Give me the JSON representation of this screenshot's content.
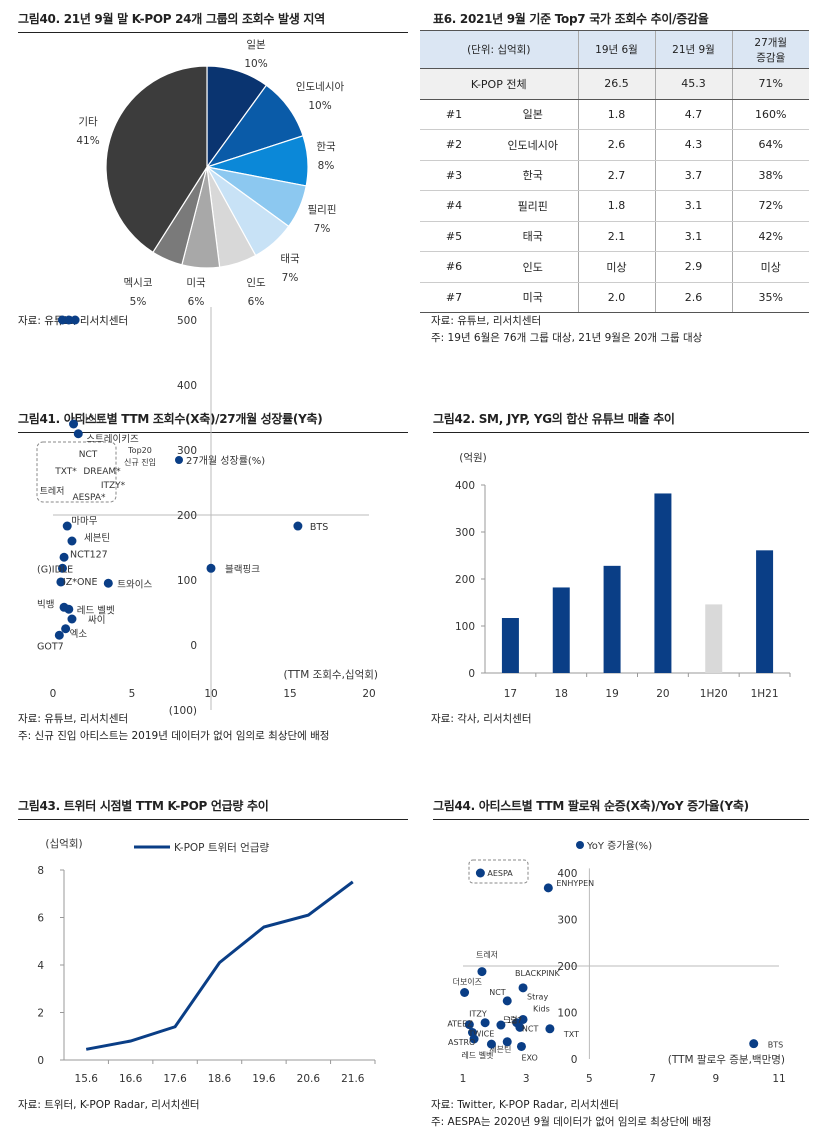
{
  "fig40": {
    "title": "그림40. 21년 9월 말 K-POP 24개 그룹의 조회수 발생 지역",
    "source": "자료: 유튜브, 리서치센터",
    "chart_data": {
      "type": "pie",
      "labels": [
        "일본",
        "인도네시아",
        "한국",
        "필리핀",
        "태국",
        "인도",
        "미국",
        "멕시코",
        "기타"
      ],
      "values": [
        10,
        10,
        8,
        7,
        7,
        6,
        6,
        5,
        41
      ],
      "value_labels": [
        "10%",
        "10%",
        "8%",
        "7%",
        "7%",
        "6%",
        "6%",
        "5%",
        "41%"
      ],
      "colors": [
        "#0a3470",
        "#0a5ba8",
        "#0b88d8",
        "#8cc8f0",
        "#c8e2f6",
        "#d8d8d8",
        "#a8a8a8",
        "#7a7a7a",
        "#3c3c3c"
      ]
    }
  },
  "table6": {
    "title": "표6. 2021년 9월 기준 Top7 국가 조회수 추이/증감율",
    "headers": [
      "(단위: 십억회)",
      "19년 6월",
      "21년 9월",
      "27개월",
      "증감율"
    ],
    "total": {
      "label": "K-POP 전체",
      "v1": "26.5",
      "v2": "45.3",
      "v3": "71%"
    },
    "rows": [
      {
        "rank": "#1",
        "country": "일본",
        "v1": "1.8",
        "v2": "4.7",
        "v3": "160%"
      },
      {
        "rank": "#2",
        "country": "인도네시아",
        "v1": "2.6",
        "v2": "4.3",
        "v3": "64%"
      },
      {
        "rank": "#3",
        "country": "한국",
        "v1": "2.7",
        "v2": "3.7",
        "v3": "38%"
      },
      {
        "rank": "#4",
        "country": "필리핀",
        "v1": "1.8",
        "v2": "3.1",
        "v3": "72%"
      },
      {
        "rank": "#5",
        "country": "태국",
        "v1": "2.1",
        "v2": "3.1",
        "v3": "42%"
      },
      {
        "rank": "#6",
        "country": "인도",
        "v1": "미상",
        "v2": "2.9",
        "v3": "미상"
      },
      {
        "rank": "#7",
        "country": "미국",
        "v1": "2.0",
        "v2": "2.6",
        "v3": "35%"
      }
    ],
    "source": "자료: 유튜브, 리서치센터",
    "note": "주: 19년 6월은 76개 그룹 대상, 21년 9월은 20개 그룹 대상"
  },
  "fig41": {
    "title": "그림41. 아티스트별 TTM 조회수(X축)/27개월 성장률(Y축)",
    "source": "자료: 유튜브, 리서치센터",
    "note": "주: 신규 진입 아티스트는 2019년 데이터가 없어 임의로 최상단에 배정",
    "chart_data": {
      "type": "scatter",
      "legend": "27개월 성장률(%)",
      "x_axis_label": "(TTM 조회수,십억회)",
      "box_label": [
        "Top20",
        "신규 진입"
      ],
      "xlim": [
        0,
        20
      ],
      "ylim": [
        -100,
        500
      ],
      "x_ticks": [
        "0",
        "5",
        "10",
        "15",
        "20"
      ],
      "y_ticks": [
        "(100)",
        "0",
        "100",
        "200",
        "300",
        "400",
        "500"
      ],
      "new_entries": [
        "NCT",
        "TXT*",
        "DREAM*",
        "트레저",
        "ITZY*",
        "AESPA*"
      ],
      "points": [
        {
          "name": "",
          "x": 0.6,
          "y": 500
        },
        {
          "name": "",
          "x": 1.0,
          "y": 500
        },
        {
          "name": "",
          "x": 1.4,
          "y": 500
        },
        {
          "name": "아이유",
          "x": 1.3,
          "y": 340
        },
        {
          "name": "스트레이키즈",
          "x": 1.6,
          "y": 325
        },
        {
          "name": "마마무",
          "x": 0.9,
          "y": 183
        },
        {
          "name": "세븐틴",
          "x": 1.2,
          "y": 160
        },
        {
          "name": "NCT127",
          "x": 0.7,
          "y": 135
        },
        {
          "name": "(G)IDLE",
          "x": 0.6,
          "y": 118
        },
        {
          "name": "IZ*ONE",
          "x": 0.5,
          "y": 97
        },
        {
          "name": "트와이스",
          "x": 3.5,
          "y": 95
        },
        {
          "name": "빅뱅",
          "x": 0.7,
          "y": 58
        },
        {
          "name": "레드 벨벳",
          "x": 1.0,
          "y": 55
        },
        {
          "name": "싸이",
          "x": 1.2,
          "y": 40
        },
        {
          "name": "엑소",
          "x": 0.8,
          "y": 25
        },
        {
          "name": "GOT7",
          "x": 0.4,
          "y": 15
        },
        {
          "name": "BTS",
          "x": 15.5,
          "y": 183
        },
        {
          "name": "블랙핑크",
          "x": 10.0,
          "y": 118
        }
      ]
    }
  },
  "fig42": {
    "title": "그림42. SM, JYP, YG의 합산 유튜브 매출 추이",
    "source": "자료: 각사, 리서치센터",
    "chart_data": {
      "type": "bar",
      "unit": "(억원)",
      "categories": [
        "17",
        "18",
        "19",
        "20",
        "1H20",
        "1H21"
      ],
      "values": [
        117,
        182,
        228,
        382,
        146,
        261
      ],
      "colors": [
        "#0a3e86",
        "#0a3e86",
        "#0a3e86",
        "#0a3e86",
        "#d9d9d9",
        "#0a3e86"
      ],
      "ylim": [
        0,
        400
      ],
      "y_ticks": [
        "0",
        "100",
        "200",
        "300",
        "400"
      ]
    }
  },
  "fig43": {
    "title": "그림43. 트위터 시점별 TTM K-POP 언급량 추이",
    "source": "자료: 트위터, K-POP Radar, 리서치센터",
    "chart_data": {
      "type": "line",
      "unit": "(십억회)",
      "series_name": "K-POP 트위터 언급량",
      "x": [
        "15.6",
        "16.6",
        "17.6",
        "18.6",
        "19.6",
        "20.6",
        "21.6"
      ],
      "values": [
        0.45,
        0.8,
        1.4,
        4.1,
        5.6,
        6.1,
        7.5
      ],
      "ylim": [
        0,
        8
      ],
      "y_ticks": [
        "0",
        "2",
        "4",
        "6",
        "8"
      ]
    }
  },
  "fig44": {
    "title": "그림44. 아티스트별 TTM 팔로워 순증(X축)/YoY 증가율(Y축)",
    "source": "자료: Twitter, K-POP Radar, 리서치센터",
    "note": "주: AESPA는 2020년 9월 데이터가 없어 임의로 최상단에 배정",
    "chart_data": {
      "type": "scatter",
      "legend": "YoY 증가율(%)",
      "x_axis_label": "(TTM 팔로우 증분,백만명)",
      "xlim": [
        1,
        11
      ],
      "ylim": [
        0,
        400
      ],
      "x_ticks": [
        "1",
        "3",
        "5",
        "7",
        "9",
        "11"
      ],
      "y_ticks": [
        "0",
        "100",
        "200",
        "300",
        "400"
      ],
      "points": [
        {
          "name": "AESPA",
          "x": 1.55,
          "y": 400
        },
        {
          "name": "ENHYPEN",
          "x": 3.7,
          "y": 368
        },
        {
          "name": "트레저",
          "x": 1.6,
          "y": 188
        },
        {
          "name": "BLACKPINK",
          "x": 2.9,
          "y": 153
        },
        {
          "name": "더보이즈",
          "x": 1.05,
          "y": 143
        },
        {
          "name": "NCT",
          "x": 2.4,
          "y": 125
        },
        {
          "name": "Stray Kids",
          "x": 2.9,
          "y": 85
        },
        {
          "name": "드림",
          "x": 2.7,
          "y": 78
        },
        {
          "name": "ITZY",
          "x": 1.7,
          "y": 78
        },
        {
          "name": "127",
          "x": 2.2,
          "y": 73
        },
        {
          "name": "ATEEZ",
          "x": 1.2,
          "y": 74
        },
        {
          "name": "NCT",
          "x": 2.8,
          "y": 68
        },
        {
          "name": "TXT",
          "x": 3.75,
          "y": 65
        },
        {
          "name": "TWICE",
          "x": 1.3,
          "y": 57
        },
        {
          "name": "ASTRO",
          "x": 1.35,
          "y": 43
        },
        {
          "name": "세븐틴",
          "x": 2.4,
          "y": 37
        },
        {
          "name": "레드 벨벳",
          "x": 1.9,
          "y": 32
        },
        {
          "name": "EXO",
          "x": 2.85,
          "y": 27
        },
        {
          "name": "BTS",
          "x": 10.2,
          "y": 33
        }
      ]
    }
  }
}
